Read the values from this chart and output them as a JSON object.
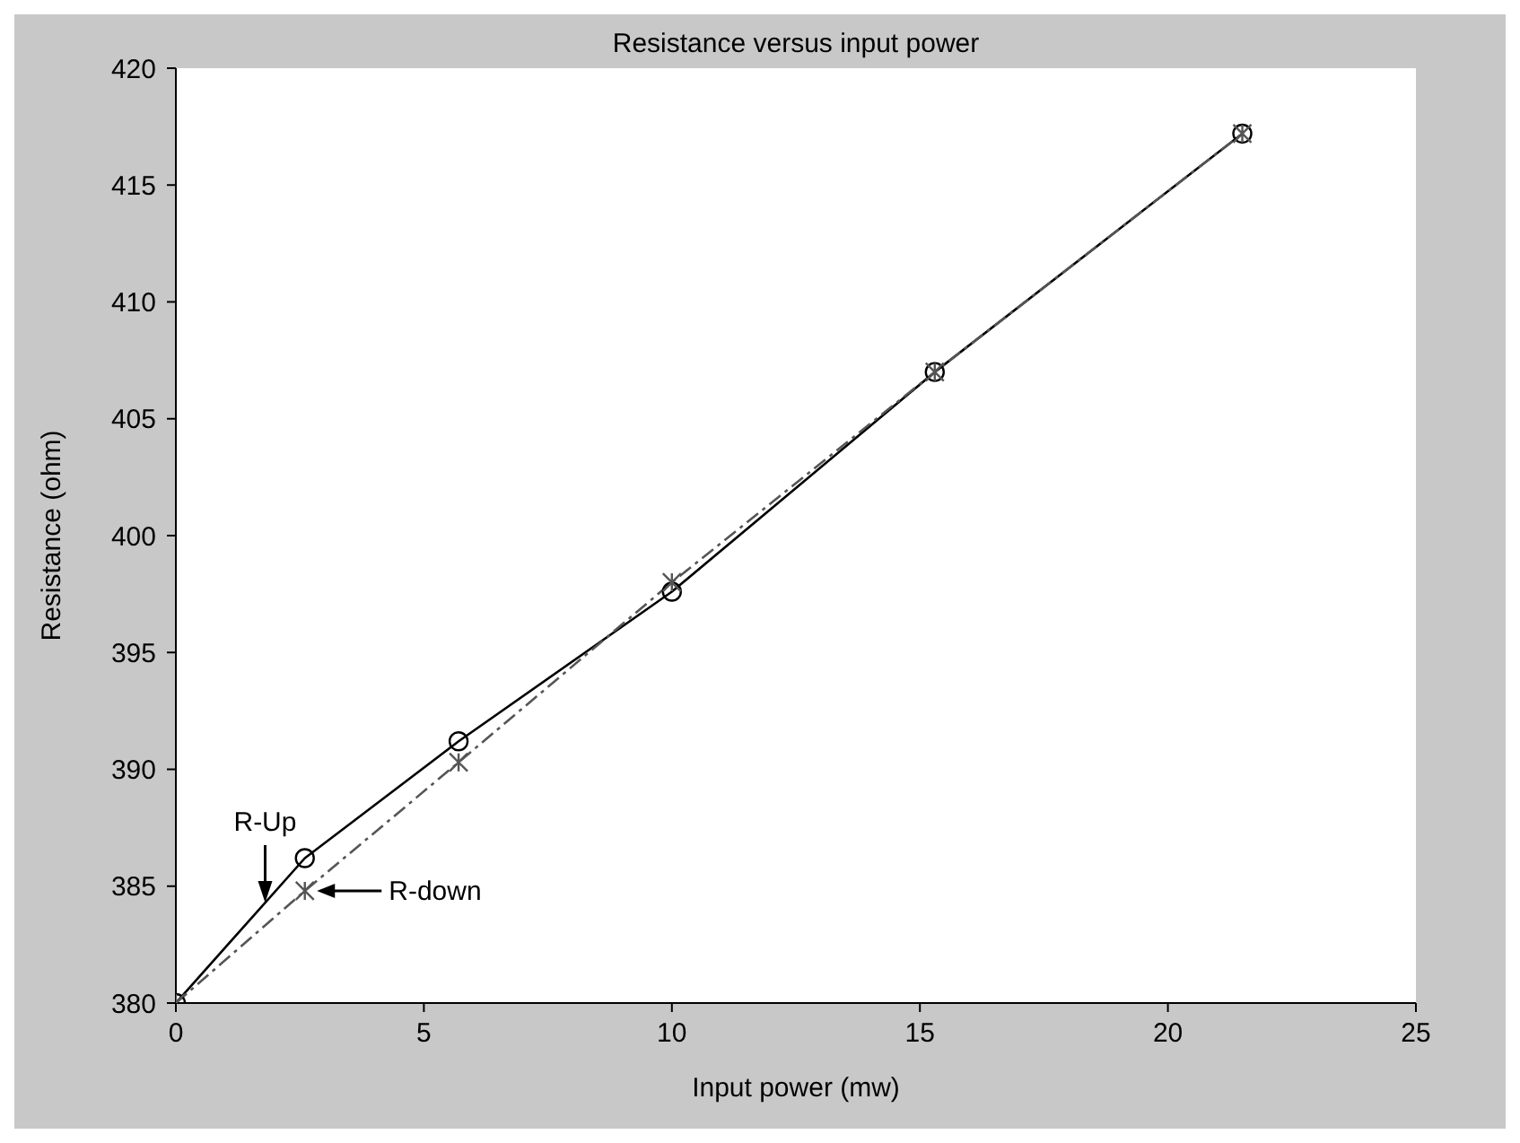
{
  "chart_data": {
    "type": "line",
    "title": "Resistance versus input power",
    "xlabel": "Input power (mw)",
    "ylabel": "Resistance (ohm)",
    "x": [
      0,
      2.6,
      5.7,
      10,
      15.3,
      21.5
    ],
    "series": [
      {
        "color": "#000000",
        "values": [
          380,
          386.2,
          391.2,
          397.6,
          407,
          417.2
        ],
        "marker": "circle",
        "line_style": "solid"
      },
      {
        "color": "#555555",
        "values": [
          380,
          384.8,
          390.3,
          398,
          407,
          417.2
        ],
        "marker": "cross",
        "line_style": "dashed"
      }
    ],
    "annotations": [
      {
        "text": "R-Up",
        "x": 1.8,
        "y": 384.3
      },
      {
        "text": "R-down",
        "x": 2.7,
        "y": 384.8
      }
    ],
    "xlim": [
      0,
      25
    ],
    "xticks": [
      0,
      5,
      10,
      15,
      20,
      25
    ],
    "ylim": [
      380,
      420
    ],
    "yticks": [
      380,
      385,
      390,
      395,
      400,
      405,
      410,
      415,
      420
    ],
    "legend": false
  }
}
